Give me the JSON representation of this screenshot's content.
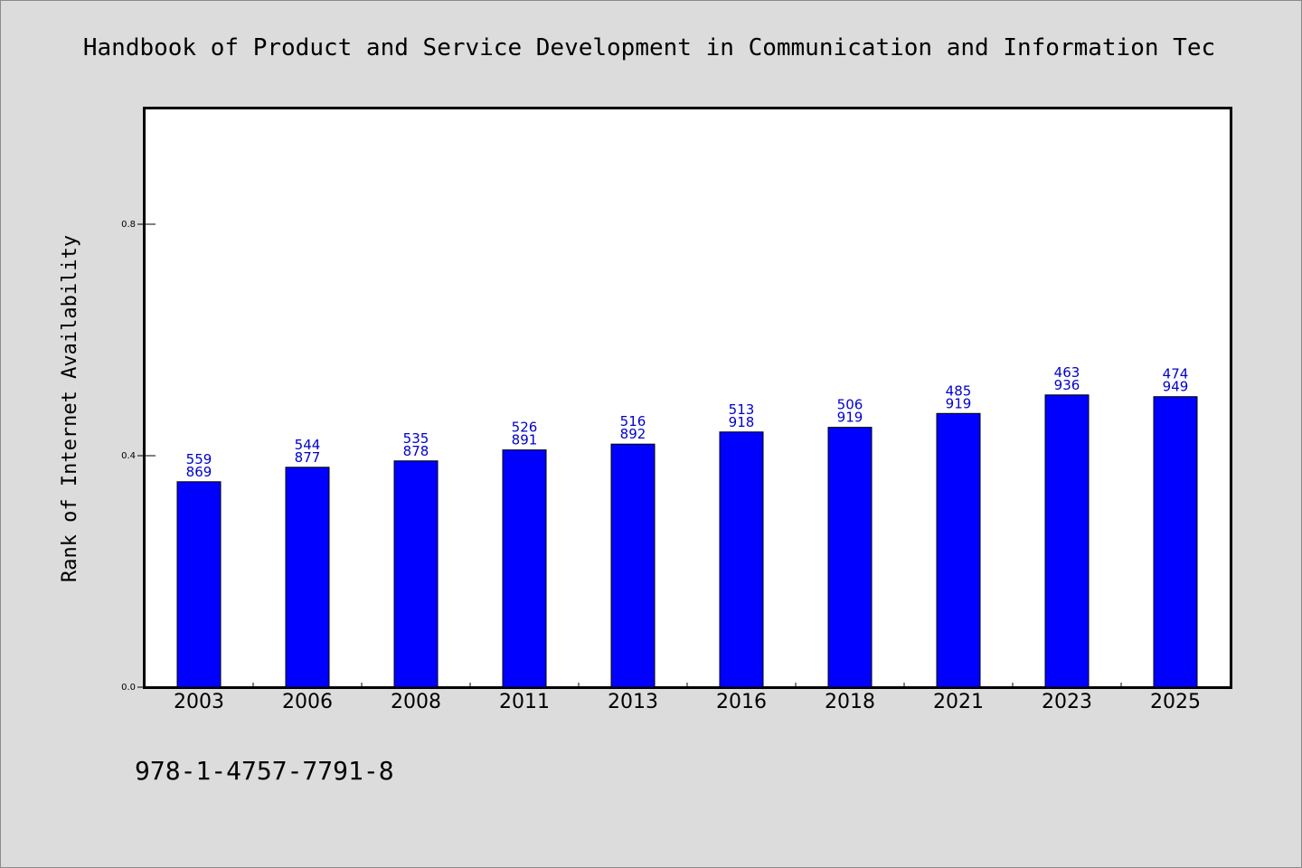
{
  "chart_data": {
    "type": "bar",
    "title": "Handbook of Product and Service Development in Communication and Information Tec",
    "xlabel": "",
    "ylabel": "Rank of Internet Availability",
    "categories": [
      "2003",
      "2006",
      "2008",
      "2011",
      "2013",
      "2016",
      "2018",
      "2021",
      "2023",
      "2025"
    ],
    "series": [
      {
        "values": [
          0.355,
          0.38,
          0.391,
          0.41,
          0.42,
          0.441,
          0.449,
          0.473,
          0.505,
          0.502
        ],
        "color": "#0000ff"
      }
    ],
    "data_labels": [
      [
        "559",
        "869"
      ],
      [
        "544",
        "877"
      ],
      [
        "535",
        "878"
      ],
      [
        "526",
        "891"
      ],
      [
        "516",
        "892"
      ],
      [
        "513",
        "918"
      ],
      [
        "506",
        "919"
      ],
      [
        "485",
        "919"
      ],
      [
        "463",
        "936"
      ],
      [
        "474",
        "949"
      ]
    ],
    "yticks": [
      {
        "value": 0.0,
        "label": "0.0"
      },
      {
        "value": 0.4,
        "label": "0.4"
      },
      {
        "value": 0.8,
        "label": "0.8"
      }
    ],
    "ylim": [
      0,
      1.0
    ],
    "grid": false,
    "legend": "none"
  },
  "footer": {
    "isbn": "978-1-4757-7791-8"
  },
  "colors": {
    "background": "#dcdcdc",
    "plot_background": "#ffffff",
    "bar": "#0000ff",
    "data_label": "#0000cc"
  }
}
